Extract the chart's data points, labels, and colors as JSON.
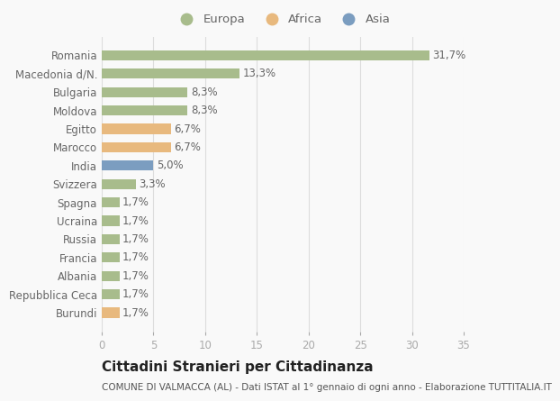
{
  "categories": [
    "Burundi",
    "Repubblica Ceca",
    "Albania",
    "Francia",
    "Russia",
    "Ucraina",
    "Spagna",
    "Svizzera",
    "India",
    "Marocco",
    "Egitto",
    "Moldova",
    "Bulgaria",
    "Macedonia d/N.",
    "Romania"
  ],
  "values": [
    1.7,
    1.7,
    1.7,
    1.7,
    1.7,
    1.7,
    1.7,
    3.3,
    5.0,
    6.7,
    6.7,
    8.3,
    8.3,
    13.3,
    31.7
  ],
  "colors": [
    "#e8b97e",
    "#a8bc8c",
    "#a8bc8c",
    "#a8bc8c",
    "#a8bc8c",
    "#a8bc8c",
    "#a8bc8c",
    "#a8bc8c",
    "#7b9dc0",
    "#e8b97e",
    "#e8b97e",
    "#a8bc8c",
    "#a8bc8c",
    "#a8bc8c",
    "#a8bc8c"
  ],
  "labels": [
    "1,7%",
    "1,7%",
    "1,7%",
    "1,7%",
    "1,7%",
    "1,7%",
    "1,7%",
    "3,3%",
    "5,0%",
    "6,7%",
    "6,7%",
    "8,3%",
    "8,3%",
    "13,3%",
    "31,7%"
  ],
  "legend": [
    {
      "label": "Europa",
      "color": "#a8bc8c"
    },
    {
      "label": "Africa",
      "color": "#e8b97e"
    },
    {
      "label": "Asia",
      "color": "#7b9dc0"
    }
  ],
  "title1": "Cittadini Stranieri per Cittadinanza",
  "title2": "COMUNE DI VALMACCA (AL) - Dati ISTAT al 1° gennaio di ogni anno - Elaborazione TUTTITALIA.IT",
  "xlim": [
    0,
    35
  ],
  "xticks": [
    0,
    5,
    10,
    15,
    20,
    25,
    30,
    35
  ],
  "background_color": "#f9f9f9",
  "grid_color": "#dddddd",
  "bar_height": 0.55,
  "label_fontsize": 8.5,
  "tick_fontsize": 8.5,
  "title1_fontsize": 11,
  "title2_fontsize": 7.5,
  "legend_fontsize": 9.5
}
